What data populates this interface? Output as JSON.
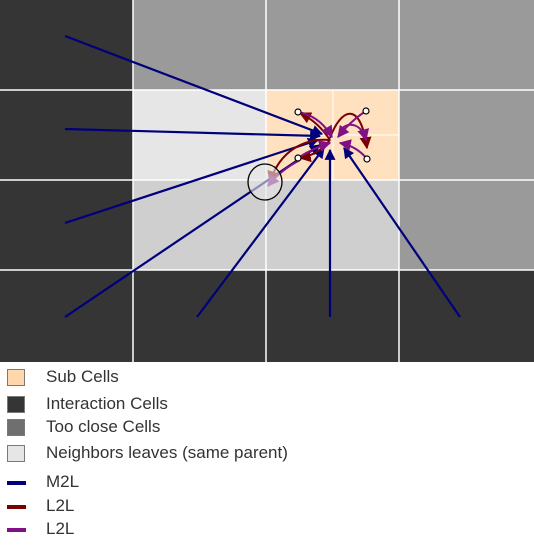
{
  "colors": {
    "background": "#ffffff",
    "interaction_cell": "#353535",
    "too_close_cell": "#9a9a9a",
    "neighbor_leaf": "#e6e6e6",
    "same_parent_lower": "#cfcfcf",
    "sub_cell": "#ffe0bf",
    "m2l": "#00007a",
    "l2l_dark": "#7a0000",
    "l2l_purple": "#7f1184"
  },
  "legend": [
    {
      "kind": "swatch",
      "color": "#ffd7aa",
      "label": "Sub Cells"
    },
    {
      "kind": "swatch",
      "color": "#353535",
      "label": "Interaction Cells"
    },
    {
      "kind": "swatch",
      "color": "#6f6f6f",
      "label": "Too close Cells"
    },
    {
      "kind": "swatch",
      "color": "#e6e6e6",
      "label": "Neighbors leaves (same parent)"
    },
    {
      "kind": "line",
      "color": "#00007a",
      "label": "M2L"
    },
    {
      "kind": "line",
      "color": "#7a0000",
      "label": "L2L"
    },
    {
      "kind": "line",
      "color": "#7f1184",
      "label": "L2L"
    }
  ]
}
